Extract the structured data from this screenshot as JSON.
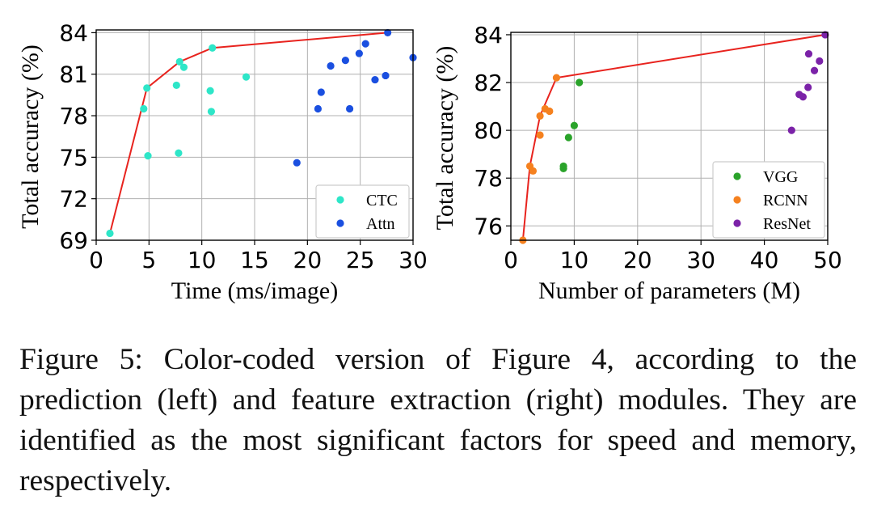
{
  "caption": "Figure 5: Color-coded version of Figure 4, according to the prediction (left) and feature extraction (right) modules. They are identified as the most significant factors for speed and memory, respectively.",
  "chart_data": [
    {
      "type": "scatter",
      "xlabel": "Time (ms/image)",
      "ylabel": "Total accuracy (%)",
      "xlim": [
        0,
        30
      ],
      "ylim": [
        69,
        84.2
      ],
      "xticks": [
        "0",
        "5",
        "10",
        "15",
        "20",
        "25",
        "30"
      ],
      "yticks": [
        "69",
        "72",
        "75",
        "78",
        "81",
        "84"
      ],
      "grid": true,
      "legend_position": "lower-right",
      "series": [
        {
          "name": "CTC",
          "color": "#2ee6c8",
          "points": [
            [
              1.3,
              69.5
            ],
            [
              4.5,
              78.5
            ],
            [
              4.8,
              80.0
            ],
            [
              4.9,
              75.1
            ],
            [
              7.6,
              80.2
            ],
            [
              7.8,
              75.3
            ],
            [
              7.9,
              81.9
            ],
            [
              8.3,
              81.5
            ],
            [
              10.8,
              79.8
            ],
            [
              10.9,
              78.3
            ],
            [
              11.0,
              82.9
            ],
            [
              14.2,
              80.8
            ]
          ]
        },
        {
          "name": "Attn",
          "color": "#1a4fe0",
          "points": [
            [
              19.0,
              74.6
            ],
            [
              21.0,
              78.5
            ],
            [
              21.3,
              79.7
            ],
            [
              22.2,
              81.6
            ],
            [
              23.6,
              82.0
            ],
            [
              24.0,
              78.5
            ],
            [
              24.9,
              82.5
            ],
            [
              25.5,
              83.2
            ],
            [
              26.4,
              80.6
            ],
            [
              27.4,
              80.9
            ],
            [
              27.6,
              84.0
            ],
            [
              30.0,
              82.2
            ]
          ]
        }
      ],
      "frontier": {
        "color": "#e8231e",
        "points": [
          [
            1.3,
            69.5
          ],
          [
            4.8,
            80.0
          ],
          [
            7.9,
            81.9
          ],
          [
            11.0,
            82.9
          ],
          [
            27.6,
            84.0
          ]
        ]
      }
    },
    {
      "type": "scatter",
      "xlabel": "Number of parameters (M)",
      "ylabel": "Total accuracy (%)",
      "xlim": [
        0,
        50
      ],
      "ylim": [
        75.4,
        84.1
      ],
      "xticks": [
        "0",
        "10",
        "20",
        "30",
        "40",
        "50"
      ],
      "yticks": [
        "76",
        "78",
        "80",
        "82",
        "84"
      ],
      "grid": true,
      "legend_position": "lower-right",
      "series": [
        {
          "name": "VGG",
          "color": "#2aa32a",
          "points": [
            [
              8.3,
              78.4
            ],
            [
              8.3,
              78.5
            ],
            [
              9.1,
              79.7
            ],
            [
              10.0,
              80.2
            ],
            [
              10.8,
              82.0
            ]
          ]
        },
        {
          "name": "RCNN",
          "color": "#f5811f",
          "points": [
            [
              1.9,
              75.4
            ],
            [
              3.0,
              78.5
            ],
            [
              3.5,
              78.3
            ],
            [
              4.6,
              79.8
            ],
            [
              4.6,
              80.6
            ],
            [
              5.4,
              80.9
            ],
            [
              6.1,
              80.8
            ],
            [
              7.2,
              82.2
            ]
          ]
        },
        {
          "name": "ResNet",
          "color": "#7b22a8",
          "points": [
            [
              44.3,
              80.0
            ],
            [
              45.5,
              81.5
            ],
            [
              46.1,
              81.4
            ],
            [
              46.9,
              81.8
            ],
            [
              47.0,
              83.2
            ],
            [
              47.9,
              82.5
            ],
            [
              48.7,
              82.9
            ],
            [
              49.6,
              84.0
            ]
          ]
        }
      ],
      "frontier": {
        "color": "#e8231e",
        "points": [
          [
            1.9,
            75.4
          ],
          [
            3.0,
            78.5
          ],
          [
            4.6,
            80.6
          ],
          [
            7.2,
            82.2
          ],
          [
            49.6,
            84.0
          ]
        ]
      }
    }
  ]
}
